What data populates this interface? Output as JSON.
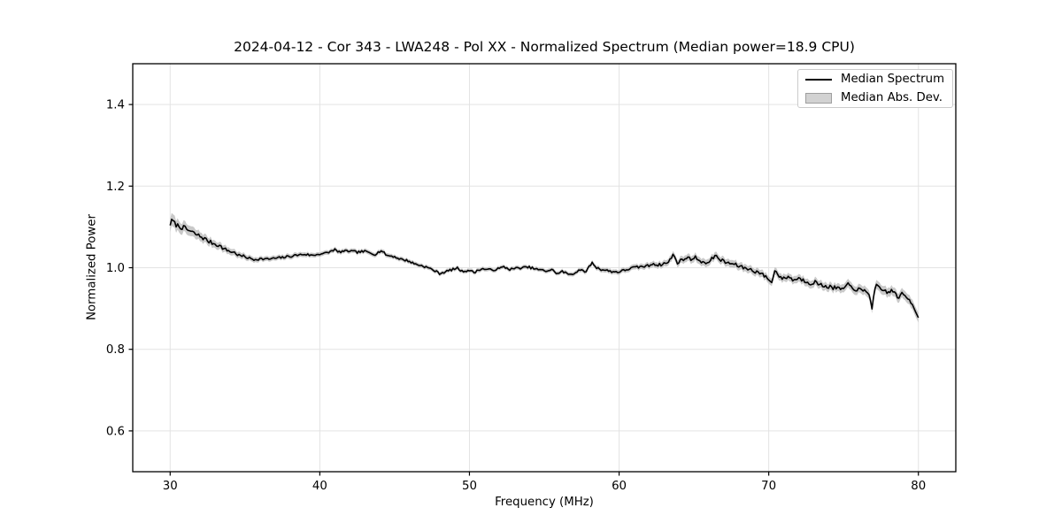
{
  "chart_data": {
    "type": "line",
    "title": "2024-04-12 - Cor 343 - LWA248 - Pol XX - Normalized Spectrum (Median power=18.9 CPU)",
    "xlabel": "Frequency (MHz)",
    "ylabel": "Normalized Power",
    "xlim": [
      27.5,
      82.5
    ],
    "ylim": [
      0.5,
      1.5
    ],
    "xticks": [
      30,
      40,
      50,
      60,
      70,
      80
    ],
    "yticks": [
      0.6,
      0.8,
      1.0,
      1.2,
      1.4
    ],
    "grid": true,
    "legend_position": "upper-right",
    "colors": {
      "line": "#000000",
      "band": "#c9c9c9",
      "grid": "#e3e3e3",
      "spine": "#000000",
      "tick_text": "#000000",
      "legend_patch_fill": "#d2d2d2",
      "legend_patch_edge": "#9e9e9e"
    },
    "noise": {
      "amplitude": 0.0032,
      "step_mhz": 0.1,
      "seed": 7
    },
    "series": [
      {
        "name": "Median Spectrum",
        "type": "line",
        "color": "#000000",
        "linewidth": 1.6,
        "points": [
          [
            30.0,
            1.107
          ],
          [
            30.15,
            1.117
          ],
          [
            30.3,
            1.108
          ],
          [
            30.5,
            1.103
          ],
          [
            30.8,
            1.099
          ],
          [
            31.0,
            1.096
          ],
          [
            31.3,
            1.09
          ],
          [
            31.6,
            1.084
          ],
          [
            32.0,
            1.077
          ],
          [
            32.3,
            1.071
          ],
          [
            32.6,
            1.064
          ],
          [
            33.0,
            1.058
          ],
          [
            33.3,
            1.054
          ],
          [
            33.6,
            1.046
          ],
          [
            34.0,
            1.04
          ],
          [
            34.3,
            1.037
          ],
          [
            34.6,
            1.03
          ],
          [
            35.0,
            1.027
          ],
          [
            35.3,
            1.023
          ],
          [
            35.6,
            1.02
          ],
          [
            36.0,
            1.022
          ],
          [
            36.5,
            1.021
          ],
          [
            37.0,
            1.023
          ],
          [
            37.5,
            1.025
          ],
          [
            38.0,
            1.028
          ],
          [
            38.5,
            1.031
          ],
          [
            39.0,
            1.033
          ],
          [
            39.5,
            1.03
          ],
          [
            40.0,
            1.034
          ],
          [
            40.5,
            1.036
          ],
          [
            41.0,
            1.045
          ],
          [
            41.2,
            1.038
          ],
          [
            41.5,
            1.04
          ],
          [
            42.0,
            1.041
          ],
          [
            42.5,
            1.038
          ],
          [
            43.0,
            1.04
          ],
          [
            43.4,
            1.036
          ],
          [
            43.7,
            1.033
          ],
          [
            44.1,
            1.042
          ],
          [
            44.5,
            1.03
          ],
          [
            44.9,
            1.028
          ],
          [
            45.4,
            1.021
          ],
          [
            45.9,
            1.017
          ],
          [
            46.3,
            1.01
          ],
          [
            47.0,
            1.003
          ],
          [
            47.5,
            0.996
          ],
          [
            48.0,
            0.986
          ],
          [
            48.4,
            0.99
          ],
          [
            48.8,
            0.995
          ],
          [
            49.2,
            0.999
          ],
          [
            49.5,
            0.991
          ],
          [
            50.0,
            0.994
          ],
          [
            50.3,
            0.988
          ],
          [
            50.7,
            0.996
          ],
          [
            51.0,
            0.997
          ],
          [
            51.5,
            0.994
          ],
          [
            52.0,
            0.998
          ],
          [
            52.3,
            1.002
          ],
          [
            52.7,
            0.996
          ],
          [
            53.0,
            0.998
          ],
          [
            53.5,
            1.0
          ],
          [
            54.0,
            1.001
          ],
          [
            54.5,
            0.996
          ],
          [
            55.1,
            0.992
          ],
          [
            55.5,
            0.995
          ],
          [
            55.9,
            0.985
          ],
          [
            56.2,
            0.991
          ],
          [
            56.6,
            0.984
          ],
          [
            57.0,
            0.986
          ],
          [
            57.4,
            0.996
          ],
          [
            57.7,
            0.988
          ],
          [
            58.2,
            1.012
          ],
          [
            58.5,
            1.0
          ],
          [
            58.8,
            0.996
          ],
          [
            59.2,
            0.993
          ],
          [
            59.6,
            0.99
          ],
          [
            60.0,
            0.99
          ],
          [
            60.4,
            0.994
          ],
          [
            60.8,
            0.999
          ],
          [
            61.2,
            1.001
          ],
          [
            61.6,
            1.003
          ],
          [
            62.0,
            1.005
          ],
          [
            62.3,
            1.011
          ],
          [
            62.6,
            1.006
          ],
          [
            63.0,
            1.01
          ],
          [
            63.3,
            1.013
          ],
          [
            63.6,
            1.032
          ],
          [
            63.9,
            1.013
          ],
          [
            64.2,
            1.019
          ],
          [
            64.5,
            1.024
          ],
          [
            64.8,
            1.022
          ],
          [
            65.1,
            1.025
          ],
          [
            65.4,
            1.018
          ],
          [
            65.7,
            1.012
          ],
          [
            65.9,
            1.008
          ],
          [
            66.2,
            1.026
          ],
          [
            66.5,
            1.027
          ],
          [
            66.8,
            1.019
          ],
          [
            67.1,
            1.013
          ],
          [
            67.4,
            1.011
          ],
          [
            67.7,
            1.008
          ],
          [
            68.0,
            1.004
          ],
          [
            68.3,
            1.0
          ],
          [
            68.6,
            0.998
          ],
          [
            69.0,
            0.992
          ],
          [
            69.4,
            0.988
          ],
          [
            69.7,
            0.98
          ],
          [
            70.0,
            0.972
          ],
          [
            70.2,
            0.963
          ],
          [
            70.45,
            0.998
          ],
          [
            70.7,
            0.978
          ],
          [
            71.0,
            0.973
          ],
          [
            71.3,
            0.979
          ],
          [
            71.6,
            0.97
          ],
          [
            72.0,
            0.974
          ],
          [
            72.4,
            0.968
          ],
          [
            72.8,
            0.962
          ],
          [
            73.1,
            0.965
          ],
          [
            73.4,
            0.958
          ],
          [
            73.8,
            0.955
          ],
          [
            74.2,
            0.952
          ],
          [
            74.6,
            0.949
          ],
          [
            75.0,
            0.948
          ],
          [
            75.3,
            0.958
          ],
          [
            75.6,
            0.95
          ],
          [
            76.0,
            0.946
          ],
          [
            76.4,
            0.942
          ],
          [
            76.7,
            0.938
          ],
          [
            76.9,
            0.903
          ],
          [
            77.15,
            0.956
          ],
          [
            77.4,
            0.948
          ],
          [
            77.7,
            0.944
          ],
          [
            78.0,
            0.94
          ],
          [
            78.3,
            0.944
          ],
          [
            78.6,
            0.928
          ],
          [
            78.9,
            0.934
          ],
          [
            79.2,
            0.928
          ],
          [
            79.5,
            0.917
          ],
          [
            79.8,
            0.897
          ],
          [
            80.0,
            0.88
          ]
        ]
      },
      {
        "name": "Median Abs. Dev.",
        "type": "band",
        "color": "#c9c9c9",
        "halfwidth": [
          [
            30,
            0.016
          ],
          [
            30.5,
            0.014
          ],
          [
            31,
            0.013
          ],
          [
            32,
            0.011
          ],
          [
            33,
            0.009
          ],
          [
            34,
            0.008
          ],
          [
            35,
            0.007
          ],
          [
            36,
            0.006
          ],
          [
            38,
            0.006
          ],
          [
            40,
            0.0055
          ],
          [
            44,
            0.0055
          ],
          [
            48,
            0.005
          ],
          [
            52,
            0.005
          ],
          [
            56,
            0.005
          ],
          [
            60,
            0.006
          ],
          [
            62,
            0.007
          ],
          [
            63.5,
            0.008
          ],
          [
            65,
            0.009
          ],
          [
            67,
            0.009
          ],
          [
            69,
            0.009
          ],
          [
            71,
            0.009
          ],
          [
            73,
            0.0095
          ],
          [
            75,
            0.01
          ],
          [
            77,
            0.011
          ],
          [
            78.5,
            0.011
          ],
          [
            80,
            0.012
          ]
        ]
      }
    ]
  }
}
